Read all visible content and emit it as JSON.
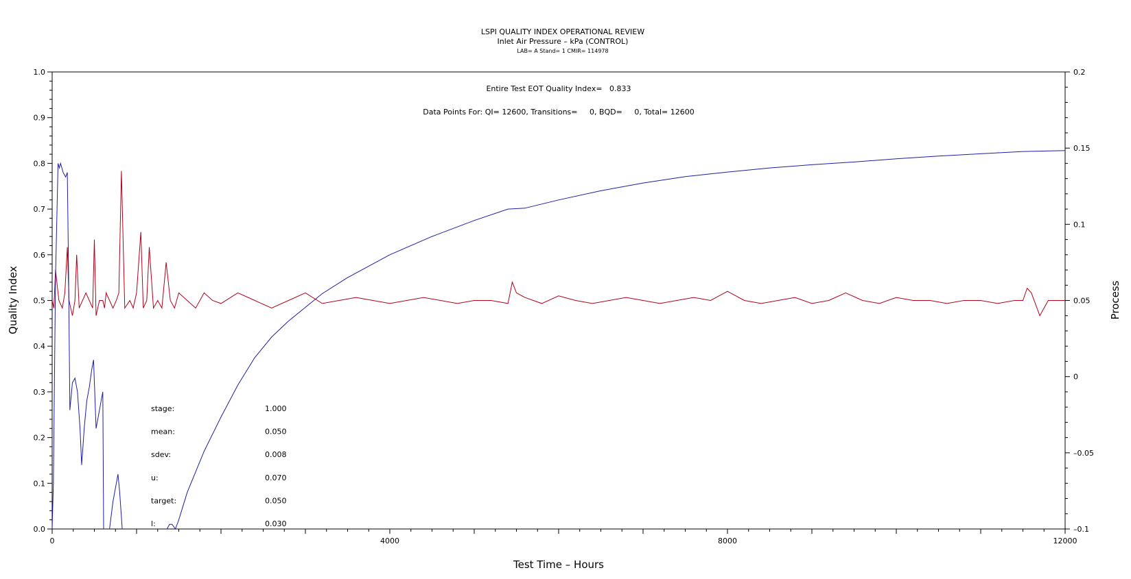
{
  "chart_data": {
    "type": "line",
    "title": "LSPI QUALITY INDEX OPERATIONAL REVIEW",
    "subtitle": "Inlet Air Pressure – kPa (CONTROL)",
    "subtitle2": "LAB= A Stand= 1 CMIR= 114978",
    "xlabel": "Test Time – Hours",
    "ylabel": "Quality Index",
    "y2label": "Process",
    "xlim": [
      0,
      12000
    ],
    "ylim": [
      0,
      1.0
    ],
    "y2lim": [
      -0.1,
      0.2
    ],
    "xticks": [
      0,
      4000,
      8000,
      12000
    ],
    "xtick_labels": [
      "0",
      "4000",
      "8000",
      "12000"
    ],
    "yticks": [
      0.0,
      0.1,
      0.2,
      0.3,
      0.4,
      0.5,
      0.6,
      0.7,
      0.8,
      0.9,
      1.0
    ],
    "ytick_labels": [
      "0.0",
      "0.1",
      "0.2",
      "0.3",
      "0.4",
      "0.5",
      "0.6",
      "0.7",
      "0.8",
      "0.9",
      "1.0"
    ],
    "y2ticks": [
      -0.1,
      -0.05,
      0,
      0.05,
      0.1,
      0.15,
      0.2
    ],
    "y2tick_labels": [
      "–0.1",
      "–0.05",
      "0",
      "0.05",
      "0.1",
      "0.15",
      "0.2"
    ],
    "annotations": [
      "Entire Test EOT Quality Index=   0.833",
      "Data Points For: QI= 12600, Transitions=     0, BQD=     0, Total= 12600"
    ],
    "stats": [
      {
        "label": "stage:",
        "value": "1.000"
      },
      {
        "label": "mean:",
        "value": "0.050"
      },
      {
        "label": "sdev:",
        "value": "0.008"
      },
      {
        "label": "u:",
        "value": "0.070"
      },
      {
        "label": "target:",
        "value": "0.050"
      },
      {
        "label": "l:",
        "value": "0.030"
      }
    ],
    "series": [
      {
        "color": "#1c1ca8",
        "axis": "left",
        "x": [
          0,
          15,
          40,
          70,
          85,
          100,
          130,
          160,
          180,
          195,
          210,
          240,
          270,
          300,
          330,
          350,
          380,
          410,
          440,
          470,
          490,
          520,
          560,
          580,
          600,
          610,
          640,
          680,
          720,
          760,
          780,
          800,
          830,
          850,
          860,
          1000,
          1020,
          1100,
          1200,
          1300,
          1360,
          1390,
          1420,
          1460,
          1500,
          1600,
          1800,
          2000,
          2200,
          2400,
          2600,
          2800,
          3000,
          3200,
          3500,
          4000,
          4500,
          5000,
          5400,
          5600,
          6000,
          6500,
          7000,
          7500,
          8000,
          8500,
          9000,
          9500,
          10000,
          10500,
          11000,
          11500,
          12000
        ],
        "values": [
          0.0,
          0.1,
          0.55,
          0.8,
          0.79,
          0.8,
          0.78,
          0.77,
          0.78,
          0.55,
          0.26,
          0.32,
          0.33,
          0.3,
          0.22,
          0.14,
          0.22,
          0.28,
          0.31,
          0.35,
          0.37,
          0.22,
          0.26,
          0.28,
          0.3,
          0.0,
          null,
          0.0,
          0.06,
          0.1,
          0.12,
          0.08,
          0.0,
          null,
          null,
          null,
          null,
          null,
          null,
          null,
          0.0,
          0.01,
          0.01,
          0.0,
          0.02,
          0.08,
          0.17,
          0.245,
          0.315,
          0.375,
          0.42,
          0.455,
          0.485,
          0.515,
          0.55,
          0.6,
          0.64,
          0.675,
          0.7,
          0.702,
          0.72,
          0.74,
          0.757,
          0.771,
          0.781,
          0.79,
          0.797,
          0.803,
          0.81,
          0.816,
          0.821,
          0.826,
          0.828
        ]
      },
      {
        "color": "#b00018",
        "axis": "right",
        "x": [
          0,
          20,
          40,
          80,
          120,
          150,
          180,
          200,
          240,
          270,
          290,
          320,
          360,
          400,
          440,
          480,
          500,
          520,
          560,
          600,
          620,
          640,
          680,
          720,
          760,
          790,
          820,
          860,
          920,
          960,
          1000,
          1050,
          1080,
          1120,
          1150,
          1200,
          1250,
          1300,
          1350,
          1400,
          1450,
          1500,
          1600,
          1700,
          1800,
          1900,
          2000,
          2200,
          2400,
          2600,
          2800,
          3000,
          3200,
          3400,
          3600,
          3800,
          4000,
          4200,
          4400,
          4600,
          4800,
          5000,
          5200,
          5400,
          5450,
          5500,
          5600,
          5800,
          6000,
          6200,
          6400,
          6600,
          6800,
          7000,
          7200,
          7400,
          7600,
          7800,
          8000,
          8200,
          8400,
          8600,
          8800,
          9000,
          9200,
          9400,
          9600,
          9800,
          10000,
          10200,
          10400,
          10600,
          10800,
          11000,
          11200,
          11400,
          11500,
          11550,
          11600,
          11700,
          11800,
          12000
        ],
        "values": [
          0.05,
          0.045,
          0.07,
          0.05,
          0.045,
          0.055,
          0.085,
          0.05,
          0.04,
          0.05,
          0.08,
          0.045,
          0.05,
          0.055,
          0.05,
          0.045,
          0.09,
          0.04,
          0.05,
          0.05,
          0.045,
          0.055,
          0.05,
          0.045,
          0.05,
          0.055,
          0.135,
          0.045,
          0.05,
          0.045,
          0.055,
          0.095,
          0.045,
          0.05,
          0.085,
          0.045,
          0.05,
          0.045,
          0.075,
          0.05,
          0.045,
          0.055,
          0.05,
          0.045,
          0.055,
          0.05,
          0.048,
          0.055,
          0.05,
          0.045,
          0.05,
          0.055,
          0.048,
          0.05,
          0.052,
          0.05,
          0.048,
          0.05,
          0.052,
          0.05,
          0.048,
          0.05,
          0.05,
          0.048,
          0.062,
          0.055,
          0.052,
          0.048,
          0.053,
          0.05,
          0.048,
          0.05,
          0.052,
          0.05,
          0.048,
          0.05,
          0.052,
          0.05,
          0.056,
          0.05,
          0.048,
          0.05,
          0.052,
          0.048,
          0.05,
          0.055,
          0.05,
          0.048,
          0.052,
          0.05,
          0.05,
          0.048,
          0.05,
          0.05,
          0.048,
          0.05,
          0.05,
          0.058,
          0.055,
          0.04,
          0.05,
          0.05
        ]
      }
    ]
  }
}
